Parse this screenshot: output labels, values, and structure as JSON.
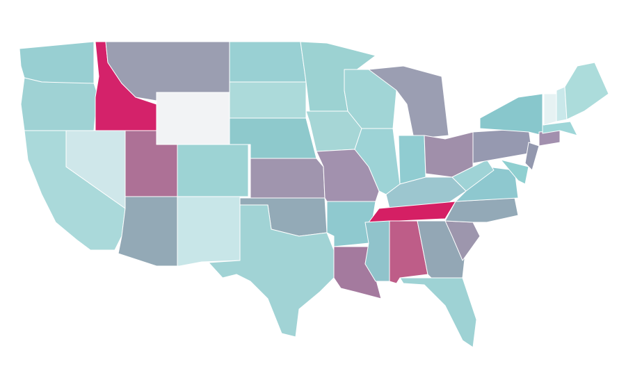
{
  "map": {
    "regions": [
      {
        "color": "#98cfd2"
      },
      {
        "color": "#9fd2d4"
      },
      {
        "color": "#aad9da"
      },
      {
        "color": "#d4226a"
      },
      {
        "color": "#cfe7ea"
      },
      {
        "color": "#9b9eb1"
      },
      {
        "color": "#f2f3f5"
      },
      {
        "color": "#ad7196"
      },
      {
        "color": "#93a9b6"
      },
      {
        "color": "#9dd3d4"
      },
      {
        "color": "#c8e6e8"
      },
      {
        "color": "#99d0d3"
      },
      {
        "color": "#acdada"
      },
      {
        "color": "#8ec9cc"
      },
      {
        "color": "#a095ae"
      },
      {
        "color": "#93aab7"
      },
      {
        "color": "#a1d3d5"
      },
      {
        "color": "#9cd2d2"
      },
      {
        "color": "#a6d6d6"
      },
      {
        "color": "#a291ae"
      },
      {
        "color": "#8fc9cf"
      },
      {
        "color": "#a47a9e"
      },
      {
        "color": "#a1d5d6"
      },
      {
        "color": "#9dd3d6"
      },
      {
        "color": "#9b9eb2"
      },
      {
        "color": "#90ccd1"
      },
      {
        "color": "#a08faa"
      },
      {
        "color": "#9cc6cf"
      },
      {
        "color": "#d51f64"
      },
      {
        "color": "#90c3cb"
      },
      {
        "color": "#be5d88"
      },
      {
        "color": "#93a7b5"
      },
      {
        "color": "#9ed2d4"
      },
      {
        "color": "#9d96ad"
      },
      {
        "color": "#93a9b7"
      },
      {
        "color": "#8ec8cf"
      },
      {
        "color": "#9fd3d6"
      },
      {
        "color": "#9699b0"
      },
      {
        "color": "#88c7cc"
      },
      {
        "color": "#9398ae"
      },
      {
        "color": "#8fcfd0"
      },
      {
        "color": "#a290ae"
      },
      {
        "color": "#9ed6d8"
      },
      {
        "color": "#e6f2f3"
      },
      {
        "color": "#c9e8ea"
      },
      {
        "color": "#acdcdb"
      }
    ]
  }
}
